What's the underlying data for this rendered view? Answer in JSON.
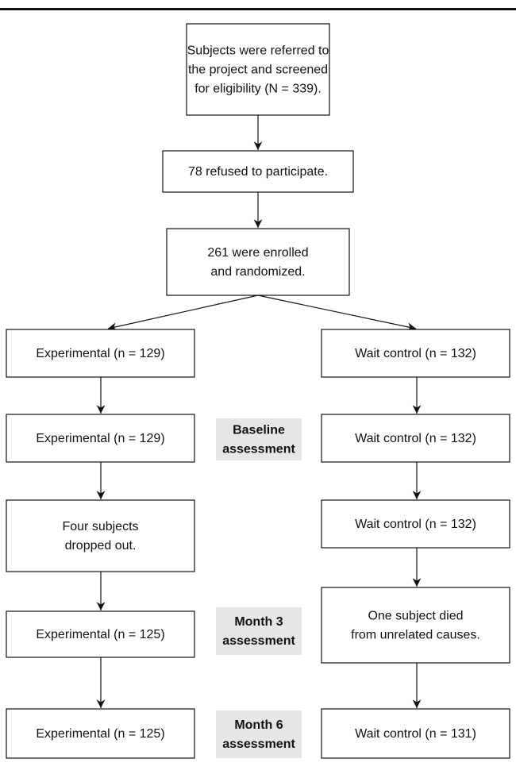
{
  "nodes": [
    {
      "lines": [
        "Subjects were referred to",
        "the project and screened",
        "for eligibility (N = 339)."
      ]
    },
    {
      "lines": [
        "78 refused to participate."
      ]
    },
    {
      "lines": [
        "261 were enrolled",
        "and randomized."
      ]
    },
    {
      "lines": [
        "Experimental (n = 129)"
      ]
    },
    {
      "lines": [
        "Wait control (n = 132)"
      ]
    },
    {
      "lines": [
        "Experimental (n = 129)"
      ]
    },
    {
      "lines": [
        "Wait control (n = 132)"
      ]
    },
    {
      "lines": [
        "Four subjects",
        "dropped out."
      ]
    },
    {
      "lines": [
        "Wait control (n = 132)"
      ]
    },
    {
      "lines": [
        "Experimental (n = 125)"
      ]
    },
    {
      "lines": [
        "One subject died",
        "from unrelated causes."
      ]
    },
    {
      "lines": [
        "Experimental (n = 125)"
      ]
    },
    {
      "lines": [
        "Wait control (n = 131)"
      ]
    }
  ],
  "stages": [
    {
      "lines": [
        "Baseline",
        "assessment"
      ]
    },
    {
      "lines": [
        "Month 3",
        "assessment"
      ]
    },
    {
      "lines": [
        "Month 6",
        "assessment"
      ]
    }
  ]
}
